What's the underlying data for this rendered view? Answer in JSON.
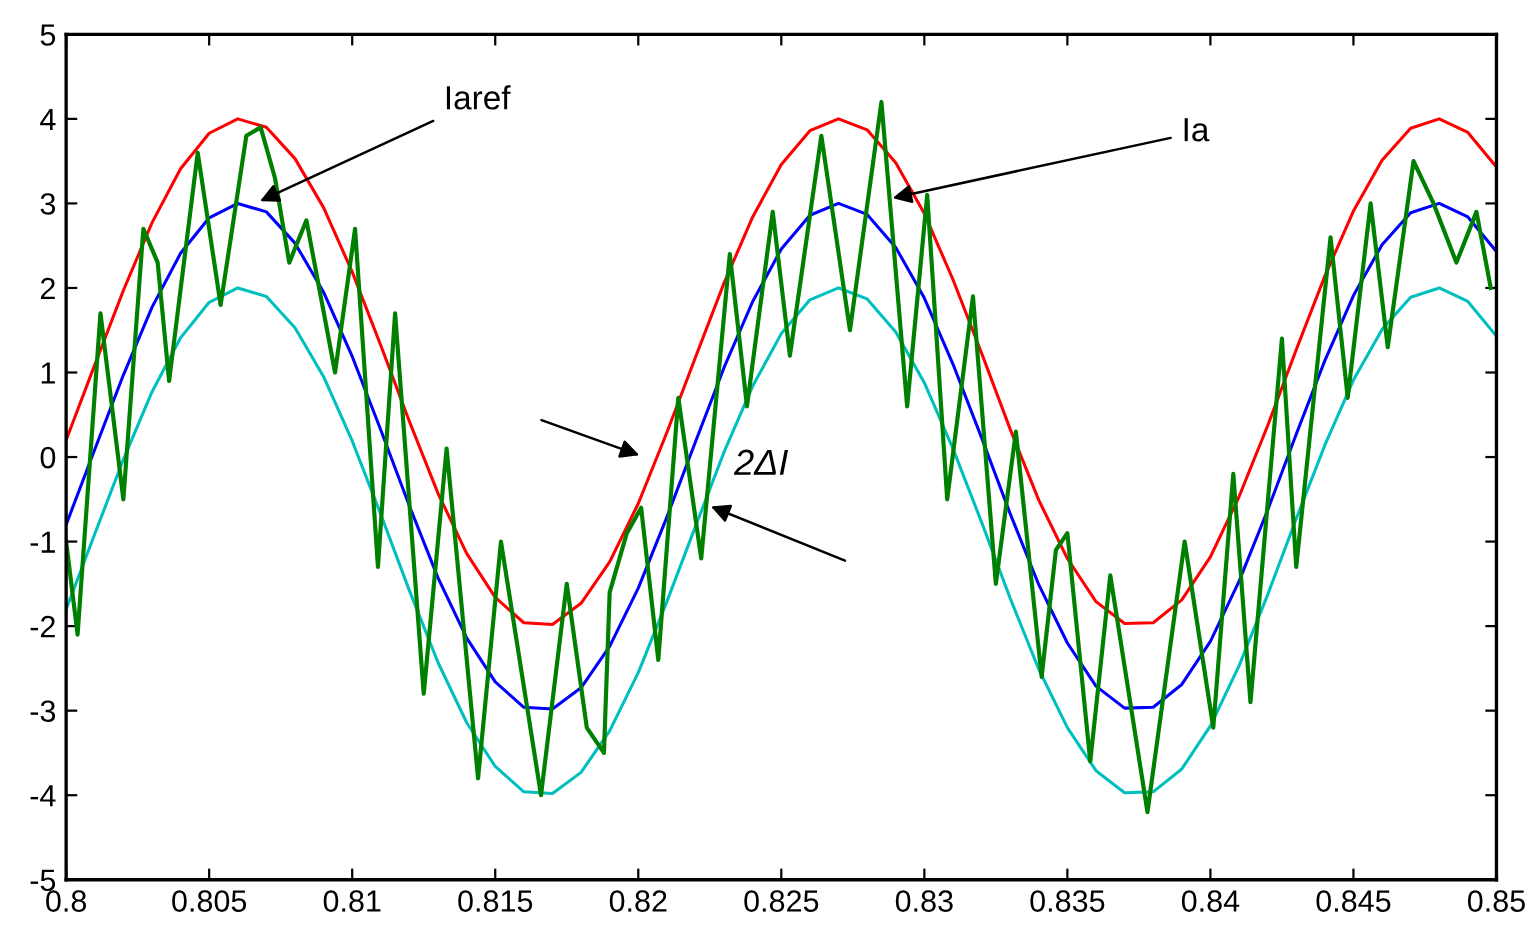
{
  "chart_data": {
    "type": "line",
    "x": [
      0.8,
      0.801,
      0.802,
      0.803,
      0.804,
      0.805,
      0.806,
      0.807,
      0.808,
      0.809,
      0.81,
      0.811,
      0.812,
      0.813,
      0.814,
      0.815,
      0.816,
      0.817,
      0.818,
      0.819,
      0.82,
      0.821,
      0.822,
      0.823,
      0.824,
      0.825,
      0.826,
      0.827,
      0.828,
      0.829,
      0.83,
      0.831,
      0.832,
      0.833,
      0.834,
      0.835,
      0.836,
      0.837,
      0.838,
      0.839,
      0.84,
      0.841,
      0.842,
      0.843,
      0.844,
      0.845,
      0.846,
      0.847,
      0.848,
      0.849,
      0.85
    ],
    "series": [
      {
        "color": "#ff0000",
        "values": [
          0.2,
          1.09,
          1.97,
          2.77,
          3.41,
          3.83,
          4.0,
          3.9,
          3.53,
          2.95,
          2.19,
          1.32,
          0.42,
          -0.43,
          -1.14,
          -1.66,
          -1.96,
          -1.98,
          -1.73,
          -1.24,
          -0.55,
          0.29,
          1.18,
          2.06,
          2.84,
          3.46,
          3.86,
          4.0,
          3.87,
          3.48,
          2.88,
          2.1,
          1.23,
          0.33,
          -0.51,
          -1.2,
          -1.71,
          -1.97,
          -1.96,
          -1.69,
          -1.18,
          -0.47,
          0.37,
          1.27,
          2.14,
          2.91,
          3.51,
          3.89,
          4.0,
          3.84,
          3.43
        ]
      },
      {
        "color": "#0000ff",
        "values": [
          -0.8,
          0.09,
          0.97,
          1.77,
          2.41,
          2.83,
          3.0,
          2.9,
          2.53,
          1.95,
          1.19,
          0.32,
          -0.58,
          -1.43,
          -2.14,
          -2.66,
          -2.96,
          -2.98,
          -2.73,
          -2.24,
          -1.55,
          -0.71,
          0.18,
          1.06,
          1.84,
          2.46,
          2.86,
          3.0,
          2.87,
          2.48,
          1.88,
          1.1,
          0.23,
          -0.67,
          -1.51,
          -2.2,
          -2.71,
          -2.97,
          -2.96,
          -2.69,
          -2.18,
          -1.47,
          -0.63,
          0.27,
          1.14,
          1.91,
          2.51,
          2.89,
          3.0,
          2.84,
          2.43
        ]
      },
      {
        "color": "#00bfbf",
        "values": [
          -1.8,
          -0.91,
          -0.03,
          0.77,
          1.41,
          1.83,
          2.0,
          1.9,
          1.53,
          0.95,
          0.19,
          -0.68,
          -1.58,
          -2.43,
          -3.14,
          -3.66,
          -3.96,
          -3.98,
          -3.73,
          -3.24,
          -2.55,
          -1.71,
          -0.82,
          0.06,
          0.84,
          1.46,
          1.86,
          2.0,
          1.87,
          1.48,
          0.88,
          0.1,
          -0.77,
          -1.67,
          -2.51,
          -3.2,
          -3.71,
          -3.97,
          -3.96,
          -3.69,
          -3.18,
          -2.47,
          -1.63,
          -0.73,
          0.14,
          0.91,
          1.51,
          1.89,
          2.0,
          1.84,
          1.43
        ]
      },
      {
        "color": "#008000",
        "x": [
          0.8,
          0.8004,
          0.8012,
          0.802,
          0.8027,
          0.8032,
          0.8036,
          0.8046,
          0.8054,
          0.8063,
          0.8068,
          0.8073,
          0.8078,
          0.8084,
          0.8094,
          0.8101,
          0.8109,
          0.8115,
          0.8125,
          0.8133,
          0.8144,
          0.8152,
          0.8166,
          0.8175,
          0.8182,
          0.8188,
          0.819,
          0.8196,
          0.8201,
          0.8207,
          0.8214,
          0.8222,
          0.8232,
          0.8238,
          0.8247,
          0.8253,
          0.8264,
          0.8274,
          0.8285,
          0.8294,
          0.8301,
          0.8308,
          0.8317,
          0.8325,
          0.8332,
          0.8341,
          0.8346,
          0.835,
          0.8358,
          0.8365,
          0.8378,
          0.8391,
          0.8401,
          0.8408,
          0.8414,
          0.8425,
          0.843,
          0.8442,
          0.8448,
          0.8456,
          0.8462,
          0.8471,
          0.8478,
          0.8486,
          0.8493,
          0.8498
        ],
        "values": [
          -1.0,
          -2.1,
          1.7,
          -0.5,
          2.7,
          2.3,
          0.9,
          3.6,
          1.8,
          3.8,
          3.9,
          3.3,
          2.3,
          2.8,
          1.0,
          2.7,
          -1.3,
          1.7,
          -2.8,
          0.1,
          -3.8,
          -1.0,
          -4.0,
          -1.5,
          -3.2,
          -3.5,
          -1.6,
          -0.9,
          -0.6,
          -2.4,
          0.7,
          -1.2,
          2.4,
          0.6,
          2.9,
          1.2,
          3.8,
          1.5,
          4.2,
          0.6,
          3.1,
          -0.5,
          1.9,
          -1.5,
          0.3,
          -2.6,
          -1.1,
          -0.9,
          -3.6,
          -1.4,
          -4.2,
          -1.0,
          -3.2,
          -0.2,
          -2.9,
          1.4,
          -1.3,
          2.6,
          0.7,
          3.0,
          1.3,
          3.5,
          3.0,
          2.3,
          2.9,
          2.0
        ]
      }
    ],
    "xlim": [
      0.8,
      0.85
    ],
    "xticks": [
      0.8,
      0.805,
      0.81,
      0.815,
      0.82,
      0.825,
      0.83,
      0.835,
      0.84,
      0.845,
      0.85
    ],
    "ylim": [
      -5,
      5
    ],
    "yticks": [
      -5,
      -4,
      -3,
      -2,
      -1,
      0,
      1,
      2,
      3,
      4,
      5
    ],
    "grid": false,
    "annotations": [
      {
        "text": "Iaref",
        "x": 0.8066,
        "y": 3.0
      },
      {
        "text": "Ia",
        "x": 0.8287,
        "y": 3.05
      },
      "2ΔI"
    ]
  }
}
